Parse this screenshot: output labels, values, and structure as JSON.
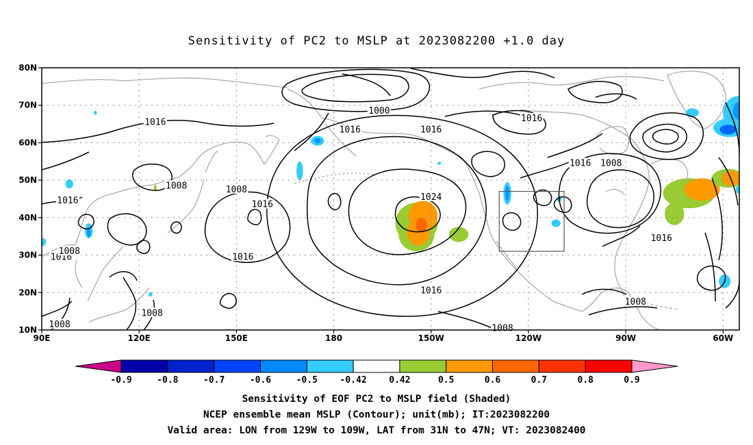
{
  "title": "Sensitivity of PC2 to MSLP at 2023082200 +1.0 day",
  "map": {
    "lon_range": [
      90,
      305
    ],
    "lat_range": [
      10,
      80
    ],
    "lat_ticks": [
      {
        "value": 10,
        "label": "10N"
      },
      {
        "value": 20,
        "label": "20N"
      },
      {
        "value": 30,
        "label": "30N"
      },
      {
        "value": 40,
        "label": "40N"
      },
      {
        "value": 50,
        "label": "50N"
      },
      {
        "value": 60,
        "label": "60N"
      },
      {
        "value": 70,
        "label": "70N"
      },
      {
        "value": 80,
        "label": "80N"
      }
    ],
    "lon_ticks": [
      {
        "value": 90,
        "label": "90E"
      },
      {
        "value": 120,
        "label": "120E"
      },
      {
        "value": 150,
        "label": "150E"
      },
      {
        "value": 180,
        "label": "180"
      },
      {
        "value": 210,
        "label": "150W"
      },
      {
        "value": 240,
        "label": "120W"
      },
      {
        "value": 270,
        "label": "90W"
      },
      {
        "value": 300,
        "label": "60W"
      }
    ],
    "gridlines": "dotted",
    "valid_box": {
      "lon_min": 231,
      "lon_max": 251,
      "lat_min": 31,
      "lat_max": 47
    },
    "contour_labels": [
      {
        "text": "1000",
        "lon": 194,
        "lat": 68.5
      },
      {
        "text": "1016",
        "lon": 241,
        "lat": 66.5
      },
      {
        "text": "1016",
        "lon": 125,
        "lat": 65.5
      },
      {
        "text": "1016",
        "lon": 185,
        "lat": 63.5
      },
      {
        "text": "1016",
        "lon": 210,
        "lat": 63.5
      },
      {
        "text": "1016",
        "lon": 256,
        "lat": 54.5
      },
      {
        "text": "1008",
        "lon": 265.5,
        "lat": 54.5
      },
      {
        "text": "1008",
        "lon": 131.5,
        "lat": 48.5
      },
      {
        "text": "1008",
        "lon": 150,
        "lat": 47.5
      },
      {
        "text": "1024",
        "lon": 210,
        "lat": 45.5
      },
      {
        "text": "1016",
        "lon": 98,
        "lat": 44.5
      },
      {
        "text": "1016",
        "lon": 158,
        "lat": 43.5
      },
      {
        "text": "1016",
        "lon": 281,
        "lat": 34.5
      },
      {
        "text": "1016",
        "lon": 96,
        "lat": 29.5
      },
      {
        "text": "1008",
        "lon": 98.5,
        "lat": 31.0
      },
      {
        "text": "1016",
        "lon": 152,
        "lat": 29.5
      },
      {
        "text": "1016",
        "lon": 210,
        "lat": 20.5
      },
      {
        "text": "1008",
        "lon": 273,
        "lat": 17.5
      },
      {
        "text": "1008",
        "lon": 124,
        "lat": 14.5
      },
      {
        "text": "1008",
        "lon": 95.5,
        "lat": 11.5
      },
      {
        "text": "1008",
        "lon": 232,
        "lat": 10.5
      }
    ],
    "shading": [
      {
        "lon": 205.5,
        "lat": 38.5,
        "rx": 6.5,
        "ry": 5.5,
        "color": "#99cc33"
      },
      {
        "lon": 205.5,
        "lat": 35.5,
        "rx": 5.5,
        "ry": 4.5,
        "color": "#99cc33"
      },
      {
        "lon": 207.5,
        "lat": 40.5,
        "rx": 4.5,
        "ry": 4.0,
        "color": "#ff9900"
      },
      {
        "lon": 206.0,
        "lat": 36.0,
        "rx": 3.5,
        "ry": 3.5,
        "color": "#ff9900"
      },
      {
        "lon": 207.0,
        "lat": 38.0,
        "rx": 1.7,
        "ry": 2.0,
        "color": "#ff6600"
      },
      {
        "lon": 218.5,
        "lat": 35.5,
        "rx": 3.0,
        "ry": 2.0,
        "color": "#99cc33"
      },
      {
        "lon": 289.5,
        "lat": 46.5,
        "rx": 8.0,
        "ry": 4.0,
        "color": "#99cc33"
      },
      {
        "lon": 293.5,
        "lat": 47.5,
        "rx": 5.5,
        "ry": 3.0,
        "color": "#ff9900"
      },
      {
        "lon": 301.5,
        "lat": 50.5,
        "rx": 5.0,
        "ry": 2.5,
        "color": "#99cc33"
      },
      {
        "lon": 302.5,
        "lat": 50.5,
        "rx": 3.0,
        "ry": 2.0,
        "color": "#ff9900"
      },
      {
        "lon": 285.0,
        "lat": 41.0,
        "rx": 3.0,
        "ry": 3.0,
        "color": "#99cc33"
      },
      {
        "lon": 305.0,
        "lat": 68.0,
        "rx": 5.0,
        "ry": 4.5,
        "color": "#33ccff"
      },
      {
        "lon": 302.0,
        "lat": 64.0,
        "rx": 5.0,
        "ry": 2.5,
        "color": "#33ccff"
      },
      {
        "lon": 305.5,
        "lat": 68.5,
        "rx": 2.5,
        "ry": 2.5,
        "color": "#0099ff"
      },
      {
        "lon": 301.5,
        "lat": 63.5,
        "rx": 2.5,
        "ry": 1.3,
        "color": "#0066ff"
      },
      {
        "lon": 290.5,
        "lat": 68.0,
        "rx": 2.0,
        "ry": 1.2,
        "color": "#33ccff"
      },
      {
        "lon": 233.5,
        "lat": 46.5,
        "rx": 1.2,
        "ry": 3.0,
        "color": "#33ccff"
      },
      {
        "lon": 233.5,
        "lat": 46.5,
        "rx": 0.6,
        "ry": 2.0,
        "color": "#0099ff"
      },
      {
        "lon": 175.0,
        "lat": 60.5,
        "rx": 2.0,
        "ry": 1.3,
        "color": "#33ccff"
      },
      {
        "lon": 175.0,
        "lat": 60.5,
        "rx": 1.0,
        "ry": 0.7,
        "color": "#0099ff"
      },
      {
        "lon": 169.5,
        "lat": 52.5,
        "rx": 1.0,
        "ry": 2.5,
        "color": "#33ccff"
      },
      {
        "lon": 104.5,
        "lat": 36.5,
        "rx": 1.2,
        "ry": 2.0,
        "color": "#33ccff"
      },
      {
        "lon": 104.5,
        "lat": 36.0,
        "rx": 0.6,
        "ry": 1.2,
        "color": "#0099ff"
      },
      {
        "lon": 98.5,
        "lat": 49.0,
        "rx": 1.2,
        "ry": 1.2,
        "color": "#33ccff"
      },
      {
        "lon": 90.5,
        "lat": 33.5,
        "rx": 0.8,
        "ry": 1.0,
        "color": "#33ccff"
      },
      {
        "lon": 300.5,
        "lat": 23.0,
        "rx": 1.8,
        "ry": 1.8,
        "color": "#33ccff"
      },
      {
        "lon": 304.5,
        "lat": 47.5,
        "rx": 0.6,
        "ry": 1.0,
        "color": "#33ccff"
      },
      {
        "lon": 248.5,
        "lat": 38.5,
        "rx": 1.4,
        "ry": 1.0,
        "color": "#33ccff"
      },
      {
        "lon": 249.5,
        "lat": 45.0,
        "rx": 0.7,
        "ry": 0.8,
        "color": "#33ccff"
      },
      {
        "lon": 123.5,
        "lat": 19.5,
        "rx": 0.6,
        "ry": 0.6,
        "color": "#33ccff"
      },
      {
        "lon": 106.5,
        "lat": 68.0,
        "rx": 0.5,
        "ry": 0.5,
        "color": "#33ccff"
      },
      {
        "lon": 125.0,
        "lat": 48.0,
        "rx": 0.5,
        "ry": 0.7,
        "color": "#99cc33"
      },
      {
        "lon": 212.5,
        "lat": 54.5,
        "rx": 0.6,
        "ry": 0.4,
        "color": "#33ccff"
      }
    ]
  },
  "colorbar": {
    "colors": [
      "#0000aa",
      "#0022cc",
      "#0044ff",
      "#0088ff",
      "#33ccff",
      "#ffffff",
      "#99cc33",
      "#ff9900",
      "#ff6600",
      "#ff3300",
      "#ff0000"
    ],
    "under_color": "#cc0088",
    "over_color": "#ff99cc",
    "labels": [
      "-0.9",
      "-0.8",
      "-0.7",
      "-0.6",
      "-0.5",
      "-0.42",
      "0.42",
      "0.5",
      "0.6",
      "0.7",
      "0.8",
      "0.9"
    ]
  },
  "caption": {
    "line1": "Sensitivity of EOF PC2 to MSLP field (Shaded)",
    "line2": "NCEP ensemble mean MSLP (Contour); unit(mb); IT:2023082200",
    "line3": "Valid area: LON from 129W to 109W, LAT from 31N to 47N; VT: 2023082400"
  }
}
